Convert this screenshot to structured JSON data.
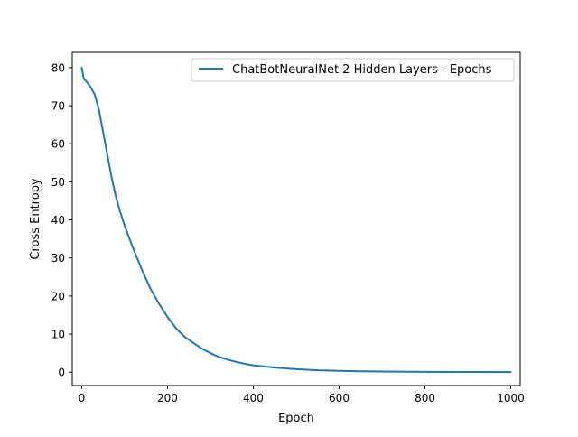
{
  "chart_data": {
    "type": "line",
    "title": "",
    "xlabel": "Epoch",
    "ylabel": "Cross Entropy",
    "xlim": [
      -22,
      1022
    ],
    "ylim": [
      -3.5,
      84
    ],
    "xticks": [
      0,
      200,
      400,
      600,
      800,
      1000
    ],
    "yticks": [
      0,
      10,
      20,
      30,
      40,
      50,
      60,
      70,
      80
    ],
    "grid": false,
    "legend_position": "top-right",
    "series": [
      {
        "name": "ChatBotNeuralNet 2 Hidden Layers - Epochs",
        "color": "#1f77b4",
        "x": [
          0,
          5,
          10,
          20,
          30,
          40,
          50,
          60,
          70,
          80,
          90,
          100,
          120,
          140,
          160,
          180,
          200,
          220,
          240,
          260,
          280,
          300,
          320,
          340,
          360,
          380,
          400,
          450,
          500,
          550,
          600,
          650,
          700,
          800,
          900,
          1000
        ],
        "y": [
          80,
          77,
          76.5,
          75,
          73,
          69,
          63,
          57,
          51,
          46,
          42,
          38.5,
          32.5,
          27,
          22,
          18,
          14.5,
          11.5,
          9.3,
          7.7,
          6.2,
          5,
          4,
          3.3,
          2.7,
          2.2,
          1.8,
          1.2,
          0.8,
          0.5,
          0.35,
          0.25,
          0.18,
          0.1,
          0.05,
          0.02
        ]
      }
    ]
  }
}
